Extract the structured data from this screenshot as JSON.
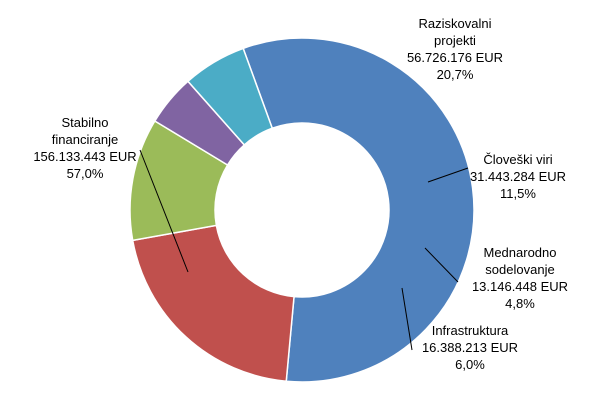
{
  "chart_data": {
    "type": "pie",
    "variant": "donut",
    "slices": [
      {
        "label": "Stabilno financiranje",
        "name_lines": [
          "Stabilno",
          "financiranje"
        ],
        "value_text": "156.133.443 EUR",
        "value": 156133443,
        "percent": 57.0,
        "percent_text": "57,0%",
        "color": "#4F81BD"
      },
      {
        "label": "Raziskovalni projekti",
        "name_lines": [
          "Raziskovalni",
          "projekti"
        ],
        "value_text": "56.726.176 EUR",
        "value": 56726176,
        "percent": 20.7,
        "percent_text": "20,7%",
        "color": "#C0504D"
      },
      {
        "label": "Človeški viri",
        "name_lines": [
          "Človeški viri"
        ],
        "value_text": "31.443.284 EUR",
        "value": 31443284,
        "percent": 11.5,
        "percent_text": "11,5%",
        "color": "#9BBB59"
      },
      {
        "label": "Mednarodno sodelovanje",
        "name_lines": [
          "Mednarodno",
          "sodelovanje"
        ],
        "value_text": "13.146.448 EUR",
        "value": 13146448,
        "percent": 4.8,
        "percent_text": "4,8%",
        "color": "#8064A2"
      },
      {
        "label": "Infrastruktura",
        "name_lines": [
          "Infrastruktura"
        ],
        "value_text": "16.388.213 EUR",
        "value": 16388213,
        "percent": 6.0,
        "percent_text": "6,0%",
        "color": "#4BACC6"
      }
    ],
    "legend": "none"
  }
}
